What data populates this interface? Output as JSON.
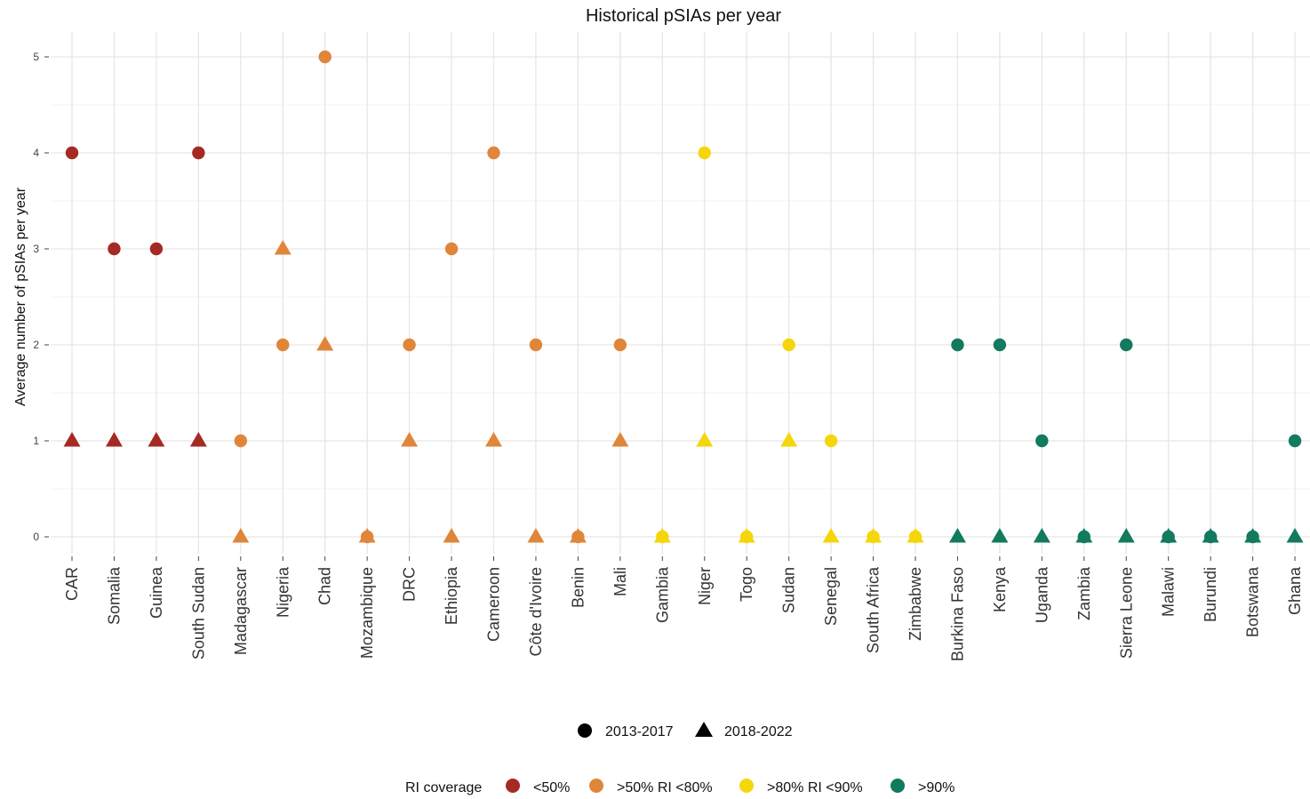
{
  "chart_data": {
    "type": "scatter",
    "title": "Historical pSIAs per year",
    "xlabel": "",
    "ylabel": "Average number of pSIAs per year",
    "ylim": [
      -0.3,
      5.25
    ],
    "yticks": [
      0,
      1,
      2,
      3,
      4,
      5
    ],
    "grid": true,
    "legend_position": "bottom",
    "categories": [
      "CAR",
      "Somalia",
      "Guinea",
      "South Sudan",
      "Madagascar",
      "Nigeria",
      "Chad",
      "Mozambique",
      "DRC",
      "Ethiopia",
      "Cameroon",
      "Côte d'Ivoire",
      "Benin",
      "Mali",
      "Gambia",
      "Niger",
      "Togo",
      "Sudan",
      "Senegal",
      "South Africa",
      "Zimbabwe",
      "Burkina Faso",
      "Kenya",
      "Uganda",
      "Zambia",
      "Sierra Leone",
      "Malawi",
      "Burundi",
      "Botswana",
      "Ghana"
    ],
    "coverage": [
      "<50%",
      "<50%",
      "<50%",
      "<50%",
      ">50% RI <80%",
      ">50% RI <80%",
      ">50% RI <80%",
      ">50% RI <80%",
      ">50% RI <80%",
      ">50% RI <80%",
      ">50% RI <80%",
      ">50% RI <80%",
      ">50% RI <80%",
      ">50% RI <80%",
      ">80% RI <90%",
      ">80% RI <90%",
      ">80% RI <90%",
      ">80% RI <90%",
      ">80% RI <90%",
      ">80% RI <90%",
      ">80% RI <90%",
      ">90%",
      ">90%",
      ">90%",
      ">90%",
      ">90%",
      ">90%",
      ">90%",
      ">90%",
      ">90%"
    ],
    "series": [
      {
        "name": "2013-2017",
        "shape": "circle",
        "values": [
          4,
          3,
          3,
          4,
          1,
          2,
          5,
          0,
          2,
          3,
          4,
          2,
          0,
          2,
          0,
          4,
          0,
          2,
          1,
          0,
          0,
          2,
          2,
          1,
          0,
          2,
          0,
          0,
          0,
          1
        ]
      },
      {
        "name": "2018-2022",
        "shape": "triangle",
        "values": [
          1,
          1,
          1,
          1,
          0,
          3,
          2,
          0,
          1,
          0,
          1,
          0,
          0,
          1,
          0,
          1,
          0,
          1,
          0,
          0,
          0,
          0,
          0,
          0,
          0,
          0,
          0,
          0,
          0,
          0
        ]
      }
    ],
    "legend": {
      "shape_items": [
        "2013-2017",
        "2018-2022"
      ],
      "color_title": "RI coverage",
      "color_items": [
        {
          "label": "<50%",
          "color": "#A52A24"
        },
        {
          "label": ">50% RI <80%",
          "color": "#E0863A"
        },
        {
          "label": ">80% RI <90%",
          "color": "#F5D60A"
        },
        {
          "label": ">90%",
          "color": "#127A5E"
        }
      ]
    }
  }
}
